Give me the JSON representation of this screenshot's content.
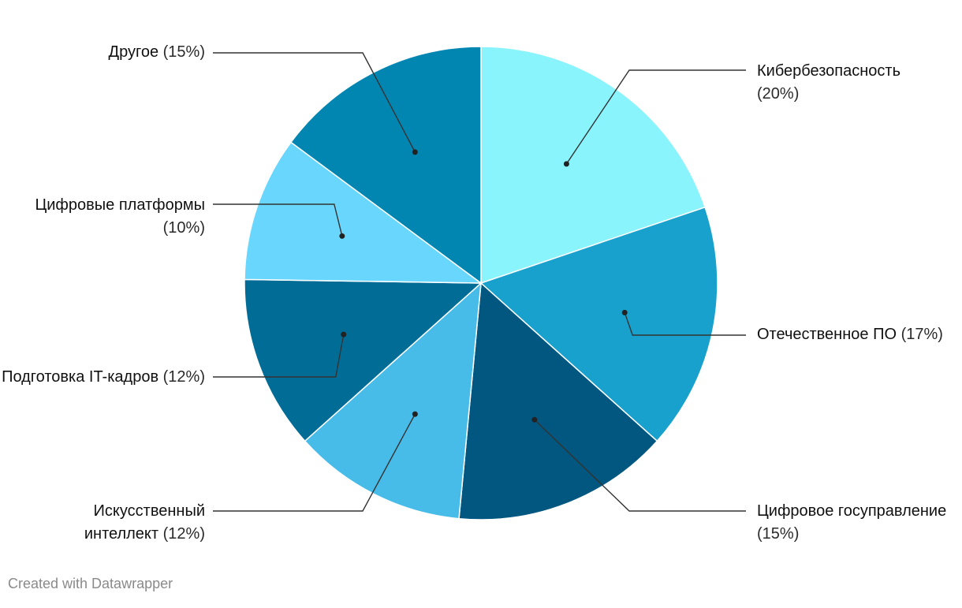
{
  "chart_data": {
    "type": "pie",
    "title": "",
    "start_angle_deg": 0,
    "direction": "clockwise",
    "slices": [
      {
        "label": "Кибербезопасность",
        "value": 20,
        "value_text": "(20%)",
        "color": "#8af4fd"
      },
      {
        "label": "Отечественное ПО",
        "value": 17,
        "value_text": "(17%)",
        "color": "#18a1cd"
      },
      {
        "label": "Цифровое госуправление",
        "value": 15,
        "value_text": "(15%)",
        "color": "#01577f"
      },
      {
        "label": "Искусственный интеллект",
        "value": 12,
        "value_text": "(12%)",
        "color": "#48bce8"
      },
      {
        "label": "Подготовка IT-кадров",
        "value": 12,
        "value_text": "(12%)",
        "color": "#016d97"
      },
      {
        "label": "Цифровые платформы",
        "value": 10,
        "value_text": "(10%)",
        "color": "#69d6fd"
      },
      {
        "label": "Другое",
        "value": 15,
        "value_text": "(15%)",
        "color": "#0186b2"
      }
    ]
  },
  "footer": {
    "credit": "Created with Datawrapper"
  }
}
